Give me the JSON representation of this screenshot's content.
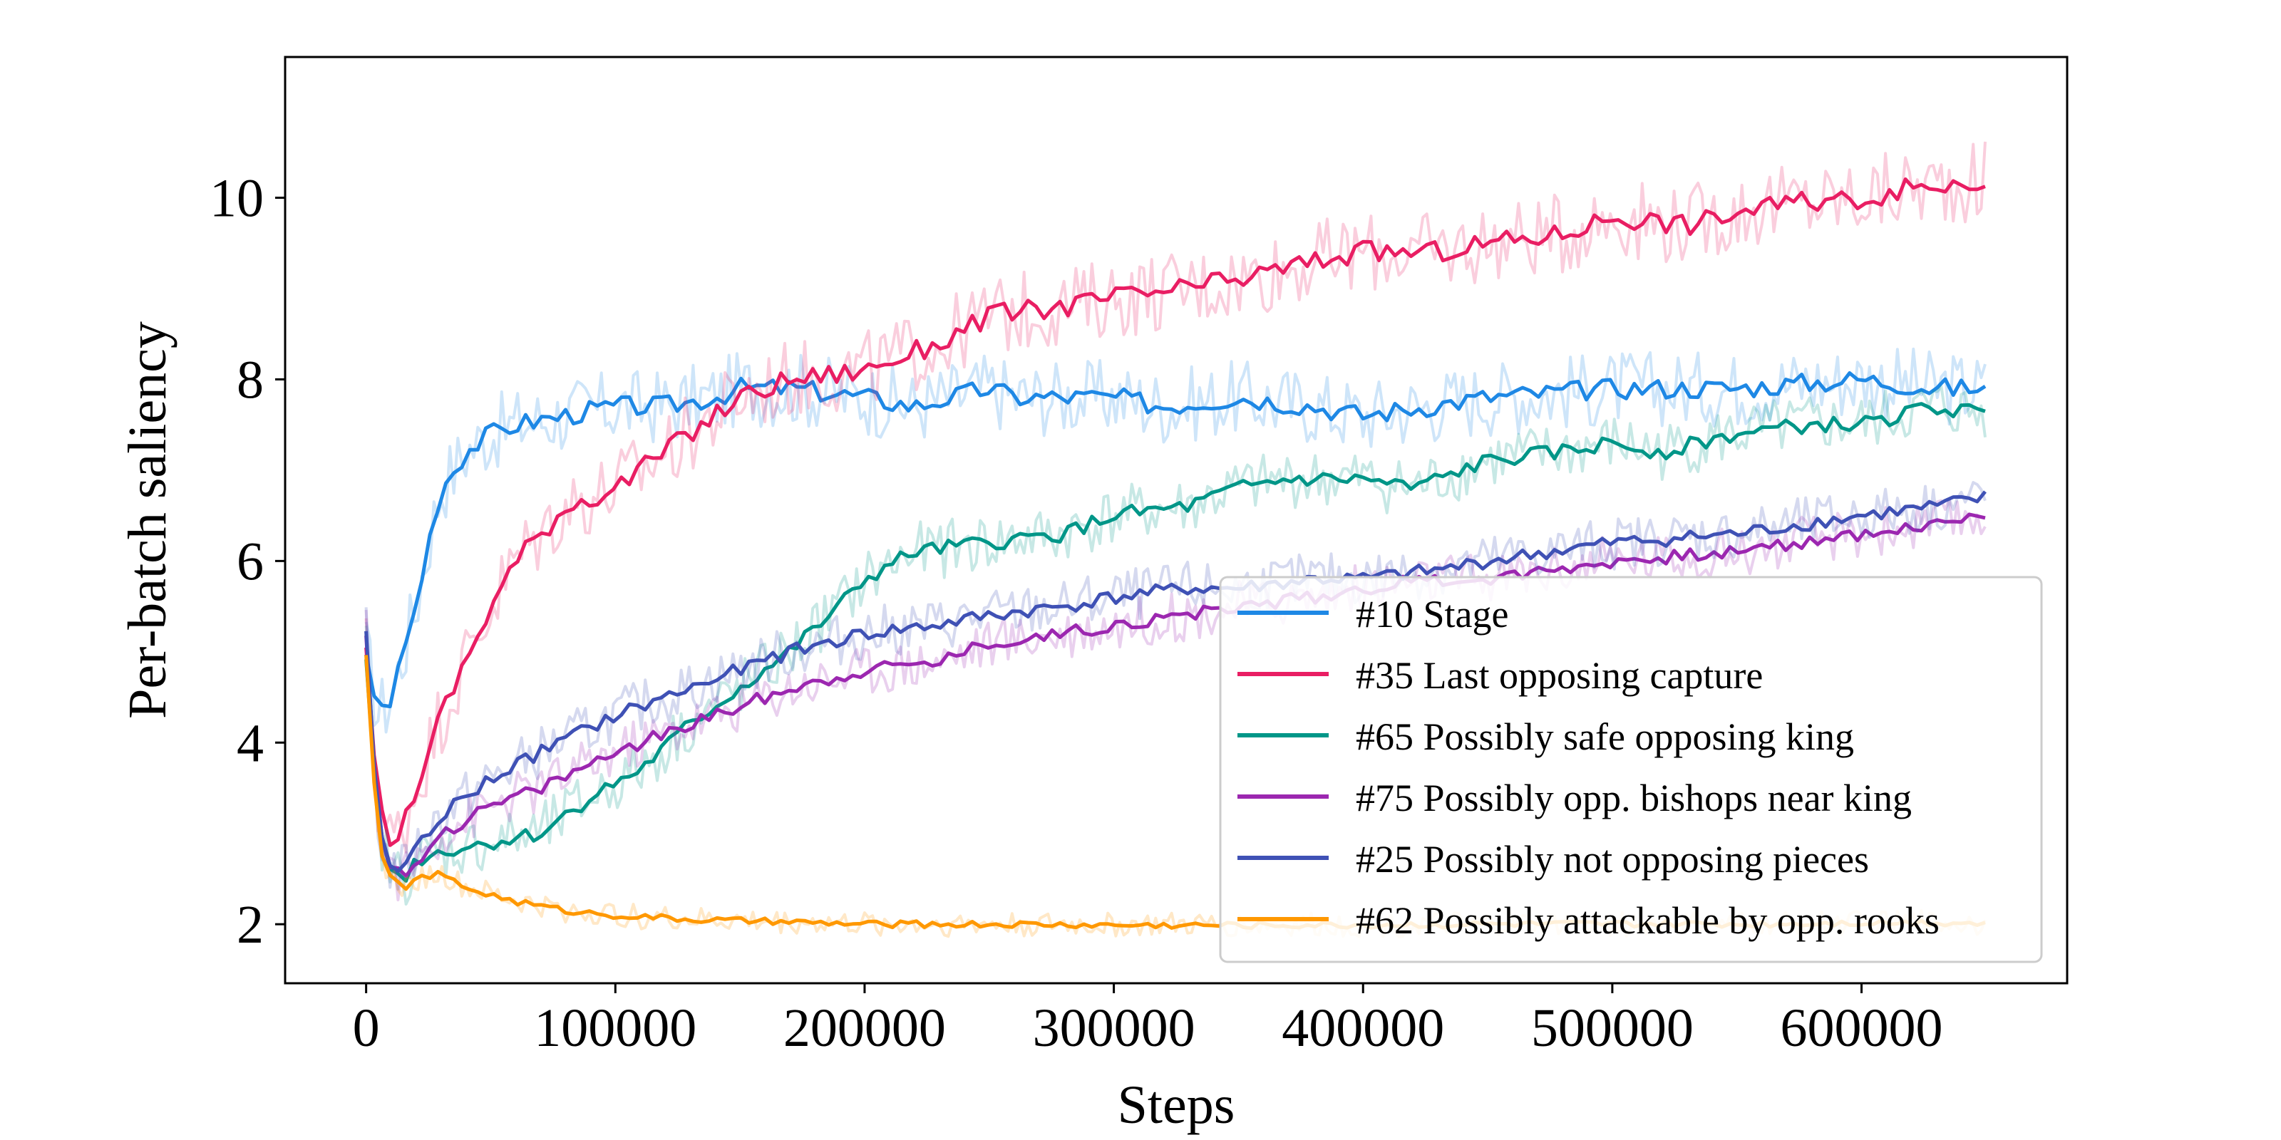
{
  "chart_data": {
    "type": "line",
    "title": "",
    "xlabel": "Steps",
    "ylabel": "Per-batch saliency",
    "xlim": [
      -32500,
      682500
    ],
    "ylim": [
      1.35,
      11.55
    ],
    "xticks": [
      0,
      100000,
      200000,
      300000,
      400000,
      500000,
      600000
    ],
    "xtick_labels": [
      "0",
      "100000",
      "200000",
      "300000",
      "400000",
      "500000",
      "600000"
    ],
    "yticks": [
      2,
      4,
      6,
      8,
      10
    ],
    "ytick_labels": [
      "2",
      "4",
      "6",
      "8",
      "10"
    ],
    "grid": false,
    "legend_position": "lower-right",
    "series": [
      {
        "name": "#10 Stage",
        "color": "#1e88e5",
        "x": [
          0,
          5000,
          10000,
          15000,
          20000,
          25000,
          30000,
          40000,
          50000,
          60000,
          80000,
          100000,
          120000,
          140000,
          150000,
          170000,
          200000,
          220000,
          250000,
          260000,
          300000,
          320000,
          350000,
          380000,
          400000,
          450000,
          500000,
          550000,
          600000,
          630000,
          650000
        ],
        "y": [
          5.0,
          4.3,
          4.5,
          5.0,
          5.5,
          6.2,
          6.8,
          7.2,
          7.4,
          7.5,
          7.6,
          7.7,
          7.7,
          7.8,
          7.9,
          7.9,
          7.8,
          7.7,
          7.9,
          7.8,
          7.8,
          7.7,
          7.8,
          7.7,
          7.6,
          7.8,
          7.9,
          7.9,
          8.0,
          7.9,
          7.9
        ]
      },
      {
        "name": "#35 Last opposing capture",
        "color": "#e91e63",
        "x": [
          0,
          5000,
          10000,
          15000,
          20000,
          30000,
          40000,
          50000,
          60000,
          70000,
          80000,
          100000,
          130000,
          150000,
          170000,
          200000,
          230000,
          250000,
          280000,
          300000,
          330000,
          350000,
          380000,
          400000,
          430000,
          450000,
          480000,
          500000,
          530000,
          560000,
          600000,
          620000,
          650000
        ],
        "y": [
          5.0,
          3.3,
          2.9,
          3.1,
          3.5,
          4.3,
          4.9,
          5.5,
          6.0,
          6.3,
          6.6,
          6.8,
          7.4,
          7.8,
          8.0,
          8.1,
          8.4,
          8.7,
          8.8,
          8.9,
          9.0,
          9.1,
          9.3,
          9.4,
          9.4,
          9.5,
          9.6,
          9.8,
          9.7,
          9.9,
          10.0,
          10.1,
          10.2
        ]
      },
      {
        "name": "#65 Possibly safe opposing king",
        "color": "#009688",
        "x": [
          0,
          5000,
          10000,
          15000,
          20000,
          30000,
          50000,
          70000,
          90000,
          110000,
          130000,
          150000,
          170000,
          190000,
          200000,
          220000,
          250000,
          280000,
          300000,
          330000,
          350000,
          370000,
          400000,
          420000,
          450000,
          480000,
          500000,
          520000,
          550000,
          580000,
          600000,
          630000,
          650000
        ],
        "y": [
          5.0,
          3.0,
          2.6,
          2.5,
          2.7,
          2.8,
          2.9,
          3.0,
          3.4,
          3.7,
          4.2,
          4.6,
          5.0,
          5.5,
          5.8,
          6.1,
          6.2,
          6.3,
          6.5,
          6.6,
          6.8,
          6.9,
          6.9,
          6.8,
          7.1,
          7.2,
          7.3,
          7.2,
          7.4,
          7.5,
          7.5,
          7.7,
          7.6
        ]
      },
      {
        "name": "#75 Possibly opp. bishops near king",
        "color": "#9c27b0",
        "x": [
          0,
          5000,
          10000,
          15000,
          20000,
          30000,
          50000,
          70000,
          100000,
          130000,
          150000,
          170000,
          200000,
          230000,
          250000,
          280000,
          300000,
          330000,
          350000,
          380000,
          400000,
          430000,
          450000,
          500000,
          550000,
          600000,
          630000,
          650000
        ],
        "y": [
          5.2,
          3.0,
          2.6,
          2.5,
          2.7,
          3.0,
          3.3,
          3.5,
          3.9,
          4.2,
          4.4,
          4.6,
          4.8,
          4.9,
          5.1,
          5.2,
          5.3,
          5.4,
          5.5,
          5.6,
          5.7,
          5.8,
          5.8,
          6.0,
          6.1,
          6.3,
          6.4,
          6.5
        ]
      },
      {
        "name": "#25 Possibly not opposing pieces",
        "color": "#3f51b5",
        "x": [
          0,
          5000,
          10000,
          15000,
          20000,
          30000,
          50000,
          70000,
          100000,
          130000,
          150000,
          170000,
          200000,
          230000,
          250000,
          280000,
          300000,
          330000,
          350000,
          380000,
          400000,
          430000,
          450000,
          500000,
          550000,
          600000,
          630000,
          650000
        ],
        "y": [
          5.2,
          3.0,
          2.6,
          2.6,
          2.8,
          3.2,
          3.6,
          3.9,
          4.3,
          4.6,
          4.8,
          5.0,
          5.2,
          5.3,
          5.4,
          5.5,
          5.6,
          5.7,
          5.7,
          5.8,
          5.8,
          5.9,
          6.0,
          6.2,
          6.3,
          6.5,
          6.6,
          6.7
        ]
      },
      {
        "name": "#62 Possibly attackable by opp. rooks",
        "color": "#ff9800",
        "x": [
          0,
          5000,
          10000,
          15000,
          20000,
          30000,
          40000,
          60000,
          80000,
          100000,
          130000,
          160000,
          200000,
          230000,
          250000,
          300000,
          350000,
          400000,
          450000,
          500000,
          550000,
          600000,
          650000
        ],
        "y": [
          5.0,
          2.8,
          2.5,
          2.4,
          2.5,
          2.55,
          2.4,
          2.25,
          2.15,
          2.1,
          2.05,
          2.03,
          2.0,
          2.0,
          2.0,
          1.99,
          1.99,
          1.99,
          2.0,
          2.0,
          2.0,
          2.02,
          2.02
        ]
      }
    ]
  }
}
